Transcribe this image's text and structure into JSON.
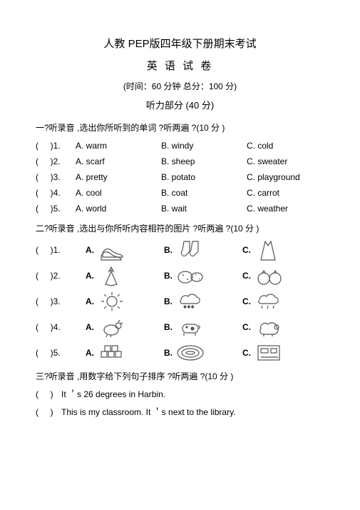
{
  "header": {
    "title_main": "人教 PEP版四年级下册期末考试",
    "title_sub": "英  语  试  卷",
    "meta": "(时间：60 分钟    总分：100 分)",
    "section": "听力部分 (40 分)"
  },
  "part1": {
    "instr": "一?听录音 ,选出你所听到的单词   ?听两遍 ?(10 分 )",
    "rows": [
      {
        "n": "1",
        "a": "A. warm",
        "b": "B. windy",
        "c": "C. cold"
      },
      {
        "n": "2",
        "a": "A. scarf",
        "b": "B. sheep",
        "c": "C. sweater"
      },
      {
        "n": "3",
        "a": "A. pretty",
        "b": "B. potato",
        "c": "C. playground"
      },
      {
        "n": "4",
        "a": "A. cool",
        "b": "B. coat",
        "c": "C. carrot"
      },
      {
        "n": "5",
        "a": "A. world",
        "b": "B. wait",
        "c": "C. weather"
      }
    ]
  },
  "part2": {
    "instr": "二?听录音 ,选出与你所听内容相符的图片   ?听两遍 ?(10 分 )",
    "rows": [
      {
        "n": "1",
        "icons": [
          "shoes",
          "socks",
          "dress"
        ]
      },
      {
        "n": "2",
        "icons": [
          "carrot",
          "watermelon",
          "tomato"
        ]
      },
      {
        "n": "3",
        "icons": [
          "sun",
          "snow",
          "rain"
        ]
      },
      {
        "n": "4",
        "icons": [
          "hen",
          "cow",
          "sheep"
        ]
      },
      {
        "n": "5",
        "icons": [
          "boxes",
          "track",
          "classroom"
        ]
      }
    ]
  },
  "part3": {
    "instr": "三?听录音 ,用数字给下列句子排序   ?听两遍 ?(10 分 )",
    "sentences": [
      "It ＇s 26 degrees in Harbin.",
      "This is my classroom. It          ＇s next to the library."
    ]
  },
  "paren_open": "(",
  "paren_close": ")",
  "labels": {
    "A": "A.",
    "B": "B.",
    "C": "C."
  },
  "colors": {
    "text": "#000",
    "stroke": "#555"
  }
}
